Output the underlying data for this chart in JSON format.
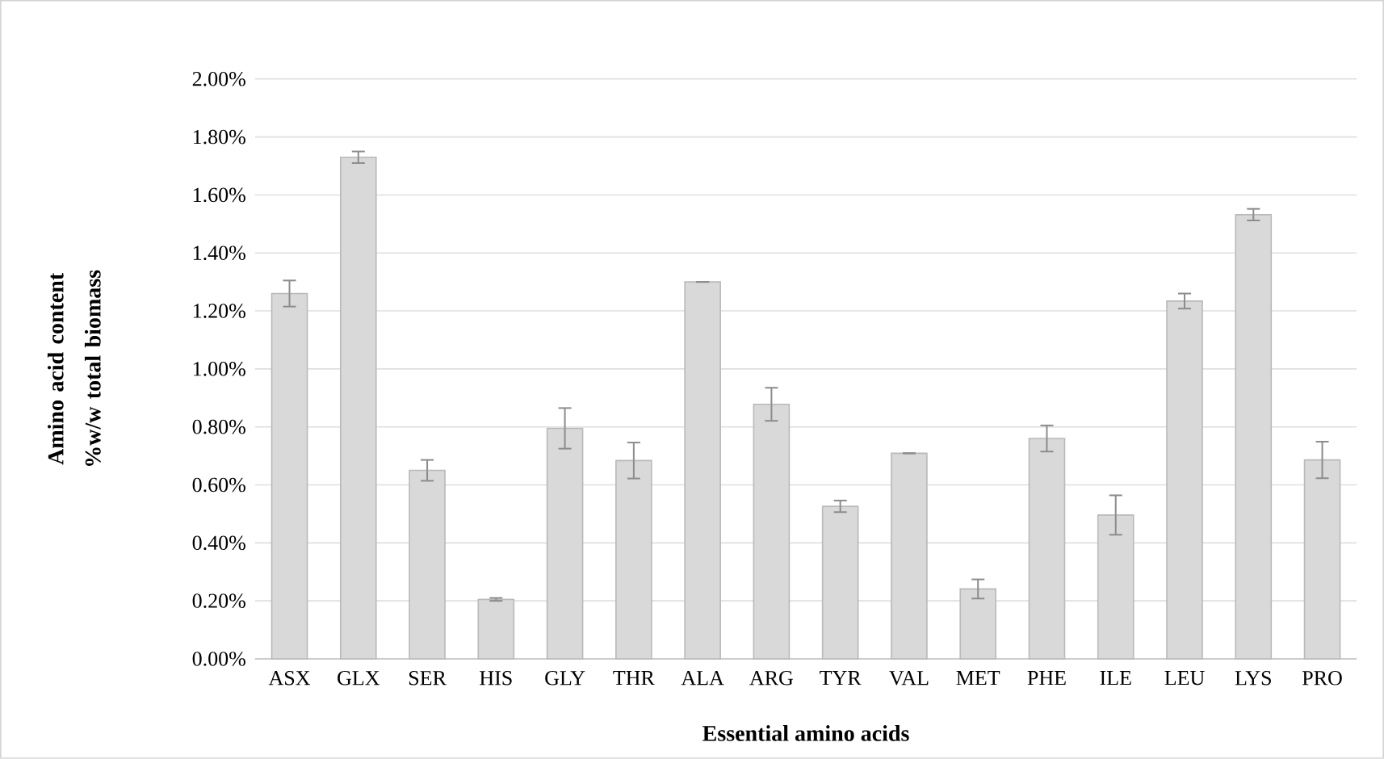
{
  "chart_data": {
    "type": "bar",
    "xlabel": "Essential amino acids",
    "ylabel": "Amino acid content %w/w total biomass",
    "categories": [
      "ASX",
      "GLX",
      "SER",
      "HIS",
      "GLY",
      "THR",
      "ALA",
      "ARG",
      "TYR",
      "VAL",
      "MET",
      "PHE",
      "ILE",
      "LEU",
      "LYS",
      "PRO"
    ],
    "values": [
      1.26,
      1.73,
      0.65,
      0.205,
      0.795,
      0.684,
      1.3,
      0.878,
      0.526,
      0.709,
      0.241,
      0.76,
      0.496,
      1.234,
      1.532,
      0.686
    ],
    "errors": [
      0.045,
      0.02,
      0.036,
      0.005,
      0.07,
      0.062,
      0,
      0.057,
      0.02,
      0,
      0.033,
      0.045,
      0.068,
      0.026,
      0.02,
      0.063
    ],
    "color": "#d9d9d9",
    "ylim": [
      0,
      2
    ],
    "yticks": [
      {
        "value": 0,
        "label": "0.00%"
      },
      {
        "value": 0.2,
        "label": "0.20%"
      },
      {
        "value": 0.4,
        "label": "0.40%"
      },
      {
        "value": 0.6,
        "label": "0.60%"
      },
      {
        "value": 0.8,
        "label": "0.80%"
      },
      {
        "value": 1.0,
        "label": "1.00%"
      },
      {
        "value": 1.2,
        "label": "1.20%"
      },
      {
        "value": 1.4,
        "label": "1.40%"
      },
      {
        "value": 1.6,
        "label": "1.60%"
      },
      {
        "value": 1.8,
        "label": "1.80%"
      },
      {
        "value": 2.0,
        "label": "2.00%"
      }
    ],
    "grid": "y"
  }
}
